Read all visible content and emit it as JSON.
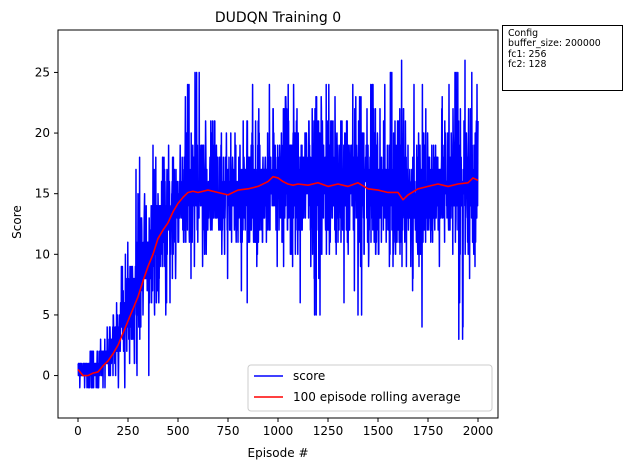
{
  "chart_data": {
    "type": "line",
    "title": "DUDQN Training 0",
    "xlabel": "Episode #",
    "ylabel": "Score",
    "xlim": [
      -100,
      2100
    ],
    "ylim": [
      -3.5,
      28.5
    ],
    "xticks": [
      0,
      250,
      500,
      750,
      1000,
      1250,
      1500,
      1750,
      2000
    ],
    "yticks": [
      0,
      5,
      10,
      15,
      20,
      25
    ],
    "legend_position": "lower-right",
    "grid": false,
    "series": [
      {
        "name": "score",
        "color": "#0000ff",
        "description_points": {
          "x": [
            0,
            50,
            100,
            150,
            200,
            250,
            300,
            350,
            400,
            450,
            500,
            550,
            600,
            650,
            700,
            750,
            800,
            850,
            900,
            950,
            1000,
            1050,
            1100,
            1150,
            1200,
            1250,
            1300,
            1350,
            1400,
            1450,
            1500,
            1550,
            1600,
            1650,
            1700,
            1750,
            1800,
            1850,
            1900,
            1950,
            2000
          ],
          "mean": [
            0.5,
            0.2,
            0.8,
            2,
            3.5,
            5,
            7.5,
            10,
            12,
            13,
            14.5,
            15,
            15.2,
            15.3,
            15.1,
            15,
            15.3,
            15.4,
            15.6,
            16,
            16.4,
            16,
            15.6,
            15.8,
            15.6,
            15.8,
            15.6,
            15.8,
            15.4,
            15.4,
            15.3,
            15.2,
            15.3,
            14.6,
            15.2,
            15.4,
            15.6,
            15.8,
            15.7,
            15.9,
            16.1
          ],
          "max": [
            1,
            1,
            4,
            6,
            8,
            11,
            18,
            18,
            20,
            22,
            22,
            24,
            25,
            25,
            24,
            22,
            24,
            23,
            25,
            24,
            25,
            24,
            24,
            25,
            23,
            24,
            24,
            25,
            23,
            24,
            23,
            24,
            27,
            24,
            24,
            23,
            24,
            24,
            25,
            26,
            24
          ],
          "min": [
            -2,
            -2,
            -2,
            -2,
            -1,
            -1,
            0,
            0,
            1,
            6,
            7,
            8,
            9,
            9,
            8,
            8,
            7,
            6,
            6,
            7,
            6,
            1,
            6,
            5,
            5,
            5,
            5,
            6,
            5,
            6,
            4,
            6,
            2,
            5,
            4,
            5,
            6,
            5,
            3,
            4,
            2
          ]
        }
      },
      {
        "name": "100 episode rolling average",
        "color": "#ff0000",
        "x": [
          0,
          25,
          50,
          75,
          100,
          125,
          150,
          175,
          200,
          225,
          250,
          275,
          300,
          325,
          350,
          375,
          400,
          425,
          450,
          475,
          500,
          525,
          550,
          575,
          600,
          650,
          700,
          750,
          800,
          850,
          900,
          950,
          975,
          1000,
          1025,
          1050,
          1075,
          1100,
          1150,
          1200,
          1250,
          1300,
          1350,
          1400,
          1450,
          1500,
          1550,
          1600,
          1625,
          1650,
          1700,
          1750,
          1800,
          1850,
          1900,
          1950,
          1975,
          2000
        ],
        "y": [
          0.5,
          0,
          0,
          0.2,
          0.3,
          0.8,
          1.2,
          1.8,
          2.5,
          3.5,
          4.5,
          5.5,
          6.5,
          7.8,
          9,
          10,
          11.3,
          12,
          12.6,
          13.5,
          14.2,
          14.7,
          15.1,
          15.2,
          15.1,
          15.3,
          15.1,
          14.9,
          15.3,
          15.4,
          15.6,
          16,
          16.4,
          16.3,
          16,
          15.8,
          15.7,
          15.8,
          15.7,
          15.9,
          15.6,
          15.8,
          15.6,
          15.9,
          15.4,
          15.3,
          15.1,
          15.1,
          14.5,
          14.9,
          15.4,
          15.6,
          15.8,
          15.6,
          15.8,
          15.9,
          16.3,
          16.1
        ]
      }
    ]
  },
  "config_box": {
    "title": "Config",
    "lines": [
      "buffer_size: 200000",
      "fc1: 256",
      "fc2: 128"
    ]
  }
}
